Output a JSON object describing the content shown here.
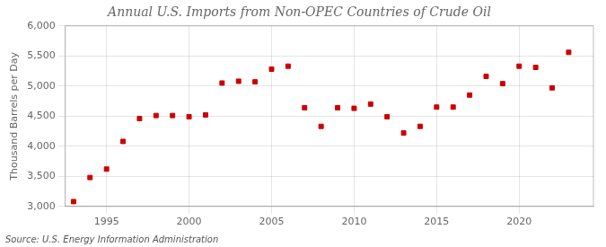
{
  "chart_data": {
    "type": "scatter",
    "title": "Annual U.S. Imports from Non-OPEC Countries of Crude Oil",
    "ylabel": "Thousand Barrels per Day",
    "annotations": [
      "Source: U.S. Energy Information Administration"
    ],
    "x": [
      1993,
      1994,
      1995,
      1996,
      1997,
      1998,
      1999,
      2000,
      2001,
      2002,
      2003,
      2004,
      2005,
      2006,
      2007,
      2008,
      2009,
      2010,
      2011,
      2012,
      2013,
      2014,
      2015,
      2016,
      2017,
      2018,
      2019,
      2020,
      2021,
      2022,
      2023
    ],
    "values": [
      3080,
      3480,
      3620,
      4080,
      4460,
      4510,
      4510,
      4490,
      4520,
      5050,
      5080,
      5070,
      5280,
      5330,
      4640,
      4330,
      4640,
      4630,
      4700,
      4490,
      4220,
      4330,
      4650,
      4650,
      4850,
      5160,
      5040,
      5330,
      5310,
      4970,
      5560
    ],
    "color": "#cc0000",
    "marker": "square",
    "xlim": [
      1992.5,
      2024.5
    ],
    "xticks": [
      1995,
      2000,
      2005,
      2010,
      2015,
      2020
    ],
    "ylim": [
      3000,
      6000
    ],
    "yticks": [
      {
        "value": 3000,
        "label": "3,000"
      },
      {
        "value": 3500,
        "label": "3,500"
      },
      {
        "value": 4000,
        "label": "4,000"
      },
      {
        "value": 4500,
        "label": "4,500"
      },
      {
        "value": 5000,
        "label": "5,000"
      },
      {
        "value": 5500,
        "label": "5,500"
      },
      {
        "value": 6000,
        "label": "6,000"
      }
    ],
    "grid": true
  }
}
